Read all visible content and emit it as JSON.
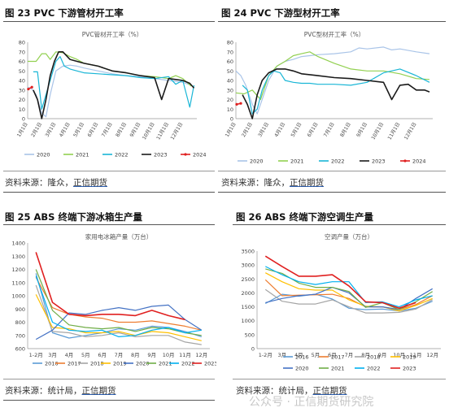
{
  "panels": {
    "p1": {
      "title": "图 23 PVC 下游管材开工率",
      "source_label": "资料来源：隆众，",
      "source_link": "正信期货"
    },
    "p2": {
      "title": "图 24   PVC 下游型材开工率",
      "source_label": "资料来源：隆众，",
      "source_link": "正信期货"
    },
    "p3": {
      "title": "图 25 ABS 终端下游冰箱生产量",
      "source_label": "资料来源：统计局，",
      "source_link": "正信期货"
    },
    "p4": {
      "title": "图 26   ABS 终端下游空调生产量",
      "source_label": "资料来源：统计局，",
      "source_link": "正信期货"
    }
  },
  "watermark": "公众号 · 正信期货研究院",
  "chart_data": [
    {
      "id": "c1",
      "type": "line",
      "title": "PVC管材开工率（%）",
      "ylim": [
        0,
        80
      ],
      "yticks": [
        0,
        10,
        20,
        30,
        40,
        50,
        60,
        70,
        80
      ],
      "xticks": [
        "1月1日",
        "2月1日",
        "3月1日",
        "4月1日",
        "5月1日",
        "6月1日",
        "7月1日",
        "8月1日",
        "9月1日",
        "10月1日",
        "11月1日",
        "12月1日"
      ],
      "xdomain": [
        0,
        12
      ],
      "series": [
        {
          "name": "2020",
          "color": "#a9c4e8",
          "x": [
            0,
            0.3,
            0.6,
            1,
            1.3,
            1.6,
            2,
            2.5,
            3,
            3.5,
            4,
            5,
            6,
            7,
            8,
            9,
            10,
            11,
            11.6
          ],
          "y": [
            33,
            31,
            25,
            6,
            2,
            25,
            50,
            55,
            56,
            55,
            53,
            50,
            47,
            45,
            44,
            42,
            40,
            38,
            35
          ]
        },
        {
          "name": "2021",
          "color": "#92d050",
          "x": [
            0,
            0.3,
            0.6,
            1,
            1.3,
            1.6,
            2,
            2.5,
            3,
            3.5,
            4,
            5,
            6,
            7,
            8,
            9,
            10,
            10.5,
            11,
            11.6
          ],
          "y": [
            60,
            60,
            60,
            68,
            68,
            62,
            70,
            69,
            65,
            62,
            58,
            55,
            50,
            48,
            45,
            44,
            42,
            45,
            42,
            34
          ]
        },
        {
          "name": "2022",
          "color": "#19b6d6",
          "x": [
            0.4,
            0.7,
            1,
            1.3,
            1.6,
            2,
            2.3,
            2.6,
            3,
            3.5,
            4,
            5,
            6,
            7,
            8,
            9,
            10,
            10.5,
            11,
            11.5,
            11.8
          ],
          "y": [
            49,
            49,
            10,
            25,
            40,
            60,
            65,
            55,
            52,
            50,
            48,
            47,
            46,
            45,
            43,
            42,
            44,
            36,
            40,
            12,
            35
          ]
        },
        {
          "name": "2023",
          "color": "#1a1a1a",
          "x": [
            0.4,
            0.7,
            1,
            1.3,
            1.6,
            1.9,
            2.2,
            2.5,
            3,
            3.5,
            4,
            5,
            6,
            7,
            8,
            9,
            9.5,
            10,
            10.5,
            11,
            11.5,
            11.8
          ],
          "y": [
            30,
            20,
            0,
            20,
            45,
            60,
            70,
            70,
            62,
            60,
            58,
            55,
            50,
            48,
            45,
            43,
            20,
            42,
            41,
            40,
            37,
            32
          ]
        },
        {
          "name": "2024",
          "color": "#e02020",
          "x": [
            0.05,
            0.3
          ],
          "y": [
            31,
            33
          ]
        }
      ]
    },
    {
      "id": "c2",
      "type": "line",
      "title": "PVC型材开工率（%）",
      "ylim": [
        0,
        80
      ],
      "yticks": [
        0,
        10,
        20,
        30,
        40,
        50,
        60,
        70,
        80
      ],
      "xticks": [
        "1月1日",
        "2月1日",
        "3月1日",
        "4月1日",
        "5月1日",
        "6月1日",
        "7月1日",
        "8月1日",
        "9月1日",
        "10月1日",
        "11月1日",
        "12月1日"
      ],
      "xdomain": [
        0,
        12
      ],
      "series": [
        {
          "name": "2020",
          "color": "#a9c4e8",
          "x": [
            0,
            0.3,
            0.6,
            1,
            1.3,
            1.6,
            2,
            2.5,
            3,
            3.5,
            4,
            4.5,
            5,
            6,
            7,
            7.5,
            8,
            9,
            9.5,
            10,
            11,
            11.8
          ],
          "y": [
            50,
            45,
            35,
            15,
            5,
            20,
            40,
            55,
            60,
            62,
            65,
            66,
            67,
            68,
            70,
            74,
            73,
            75,
            72,
            73,
            70,
            68
          ]
        },
        {
          "name": "2021",
          "color": "#92d050",
          "x": [
            0,
            0.5,
            1,
            1.5,
            2,
            2.5,
            3,
            3.5,
            4,
            4.5,
            5,
            6,
            7,
            8,
            9,
            10,
            11,
            11.8
          ],
          "y": [
            27,
            26,
            30,
            20,
            45,
            55,
            60,
            66,
            68,
            70,
            65,
            58,
            52,
            50,
            50,
            47,
            42,
            41
          ]
        },
        {
          "name": "2022",
          "color": "#19b6d6",
          "x": [
            0.4,
            0.7,
            1,
            1.3,
            1.6,
            2,
            2.3,
            2.7,
            3,
            3.5,
            4,
            4.5,
            5,
            6,
            7,
            8,
            9,
            10,
            11,
            11.8
          ],
          "y": [
            35,
            30,
            5,
            10,
            30,
            45,
            50,
            48,
            40,
            38,
            37,
            37,
            36,
            36,
            35,
            38,
            48,
            52,
            45,
            38
          ]
        },
        {
          "name": "2023",
          "color": "#1a1a1a",
          "x": [
            0.4,
            0.7,
            1,
            1.3,
            1.6,
            2,
            2.5,
            3,
            3.5,
            4,
            5,
            6,
            7,
            8,
            9,
            9.5,
            10,
            10.5,
            11,
            11.5,
            11.8
          ],
          "y": [
            25,
            15,
            0,
            25,
            40,
            48,
            52,
            52,
            50,
            47,
            45,
            43,
            42,
            40,
            38,
            20,
            35,
            36,
            30,
            30,
            28
          ]
        },
        {
          "name": "2024",
          "color": "#e02020",
          "x": [
            0.05,
            0.3
          ],
          "y": [
            15,
            16
          ]
        }
      ]
    },
    {
      "id": "c3",
      "type": "line",
      "title": "家用电冰箱产量（万台）",
      "ylim": [
        600,
        1400
      ],
      "yticks": [
        600,
        700,
        800,
        900,
        1000,
        1100,
        1200,
        1300,
        1400
      ],
      "categories": [
        "1-2月",
        "3月",
        "4月",
        "5月",
        "6月",
        "7月",
        "8月",
        "9月",
        "10月",
        "11月",
        "12月"
      ],
      "series": [
        {
          "name": "2016",
          "color": "#5b9bd5",
          "values": [
            1170,
            720,
            680,
            700,
            720,
            750,
            740,
            770,
            760,
            730,
            690
          ]
        },
        {
          "name": "2017",
          "color": "#ed7d31",
          "values": [
            1140,
            910,
            860,
            840,
            830,
            800,
            800,
            810,
            790,
            770,
            740
          ]
        },
        {
          "name": "2018",
          "color": "#a5a5a5",
          "values": [
            1080,
            730,
            720,
            690,
            700,
            720,
            690,
            700,
            700,
            650,
            630
          ]
        },
        {
          "name": "2019",
          "color": "#ffc000",
          "values": [
            1010,
            760,
            750,
            720,
            720,
            730,
            700,
            730,
            720,
            690,
            660
          ]
        },
        {
          "name": "2020",
          "color": "#4472c4",
          "values": [
            670,
            740,
            870,
            860,
            890,
            910,
            890,
            920,
            930,
            820,
            740
          ]
        },
        {
          "name": "2021",
          "color": "#70ad47",
          "values": [
            1200,
            890,
            780,
            760,
            750,
            760,
            730,
            760,
            750,
            720,
            700
          ]
        },
        {
          "name": "2022",
          "color": "#00b0f0",
          "values": [
            1150,
            800,
            740,
            730,
            740,
            690,
            700,
            740,
            760,
            720,
            740
          ]
        },
        {
          "name": "2023",
          "color": "#e02020",
          "values": [
            1330,
            950,
            860,
            850,
            860,
            860,
            850,
            890,
            850,
            820,
            null
          ]
        }
      ]
    },
    {
      "id": "c4",
      "type": "line",
      "title": "空调产量（万台）",
      "ylim": [
        0,
        3500
      ],
      "yticks": [
        0,
        500,
        1000,
        1500,
        2000,
        2500,
        3000,
        3500
      ],
      "categories": [
        "1-2月",
        "3月",
        "4月",
        "5月",
        "6月",
        "7月",
        "8月",
        "9月",
        "10月",
        "11月",
        "12月"
      ],
      "series": [
        {
          "name": "2016",
          "color": "#5b9bd5",
          "values": [
            1620,
            1950,
            1880,
            1950,
            1780,
            1450,
            1400,
            1420,
            1350,
            1450,
            1700
          ]
        },
        {
          "name": "2017",
          "color": "#ed7d31",
          "values": [
            2470,
            1900,
            1920,
            1930,
            1950,
            1800,
            1500,
            1500,
            1400,
            1580,
            1900
          ]
        },
        {
          "name": "2018",
          "color": "#a5a5a5",
          "values": [
            2120,
            1700,
            1600,
            1600,
            1750,
            1500,
            1280,
            1280,
            1300,
            1420,
            1760
          ]
        },
        {
          "name": "2019",
          "color": "#ffc000",
          "values": [
            2720,
            2400,
            2150,
            2100,
            2100,
            1750,
            1520,
            1500,
            1350,
            1550,
            1800
          ]
        },
        {
          "name": "2020",
          "color": "#4472c4",
          "values": [
            1650,
            1800,
            1900,
            1950,
            2200,
            2000,
            1500,
            1500,
            1400,
            1800,
            2150
          ]
        },
        {
          "name": "2021",
          "color": "#70ad47",
          "values": [
            2860,
            2700,
            2350,
            2200,
            2200,
            2050,
            1480,
            1650,
            1400,
            1680,
            2050
          ]
        },
        {
          "name": "2022",
          "color": "#00b0f0",
          "values": [
            2950,
            2650,
            2400,
            2300,
            2400,
            2400,
            1650,
            1680,
            1500,
            1750,
            1900
          ]
        },
        {
          "name": "2023",
          "color": "#e02020",
          "values": [
            3320,
            2950,
            2600,
            2600,
            2650,
            2250,
            1680,
            1650,
            1450,
            1650,
            null
          ]
        }
      ]
    }
  ]
}
